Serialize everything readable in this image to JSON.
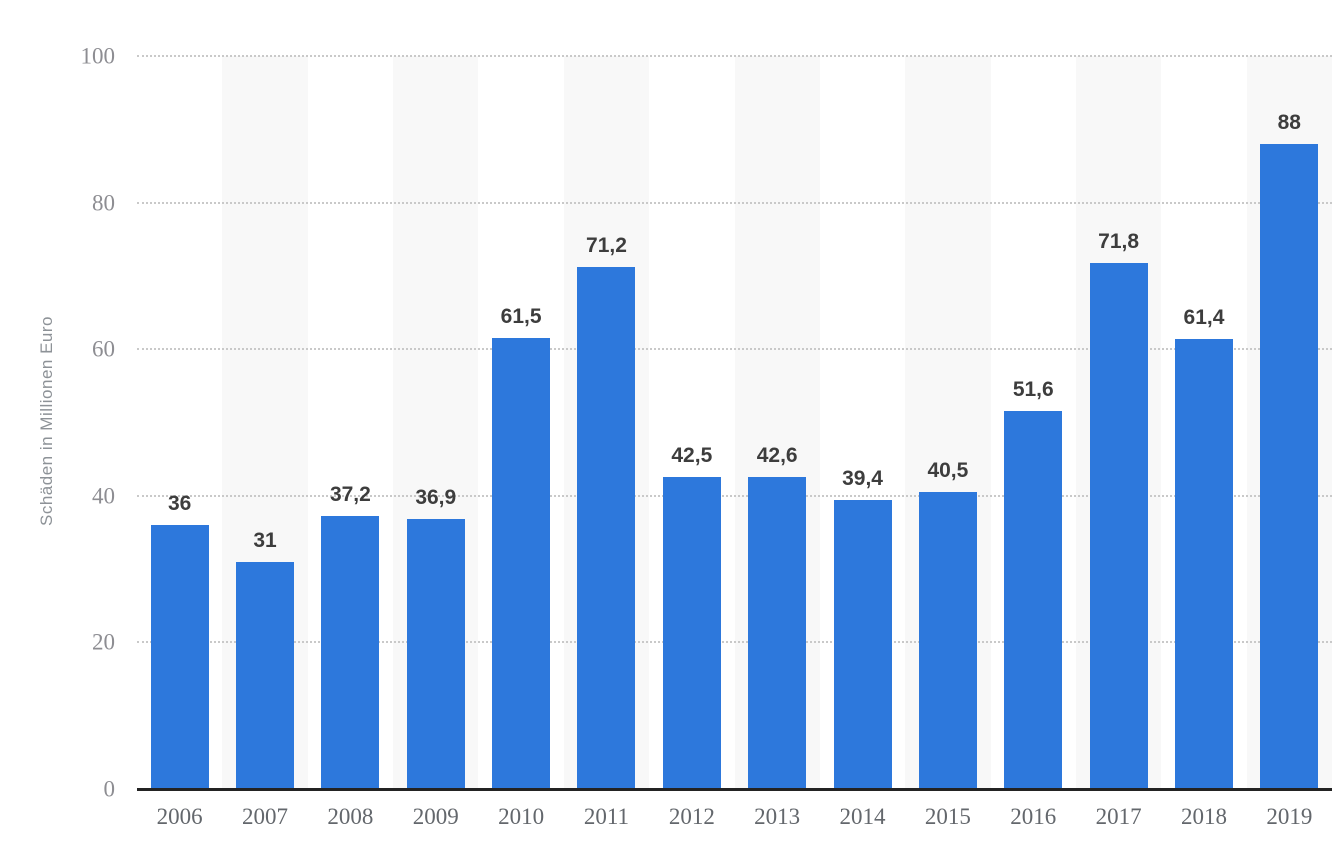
{
  "chart_data": {
    "type": "bar",
    "title": "",
    "xlabel": "",
    "ylabel": "Schäden in Millionen Euro",
    "categories": [
      "2006",
      "2007",
      "2008",
      "2009",
      "2010",
      "2011",
      "2012",
      "2013",
      "2014",
      "2015",
      "2016",
      "2017",
      "2018",
      "2019"
    ],
    "values": [
      36,
      31,
      37.2,
      36.9,
      61.5,
      71.2,
      42.5,
      42.6,
      39.4,
      40.5,
      51.6,
      71.8,
      61.4,
      88
    ],
    "value_labels": [
      "36",
      "31",
      "37,2",
      "36,9",
      "61,5",
      "71,2",
      "42,5",
      "42,6",
      "39,4",
      "40,5",
      "51,6",
      "71,8",
      "61,4",
      "88"
    ],
    "ylim": [
      0,
      100
    ],
    "yticks": [
      0,
      20,
      40,
      60,
      80,
      100
    ],
    "grid": "horizontal-dotted",
    "legend": "none",
    "stripes": "alternating-columns",
    "colors": {
      "bar": "#2d78dc",
      "stripe": "#f8f8f8",
      "gridline": "#c9c9c9",
      "axis_line": "#232323",
      "tick_label": "#8d8d92",
      "x_label": "#63676c",
      "value_label": "#3d3d3d",
      "y_axis_title": "#8d9297",
      "background": "#ffffff"
    }
  }
}
